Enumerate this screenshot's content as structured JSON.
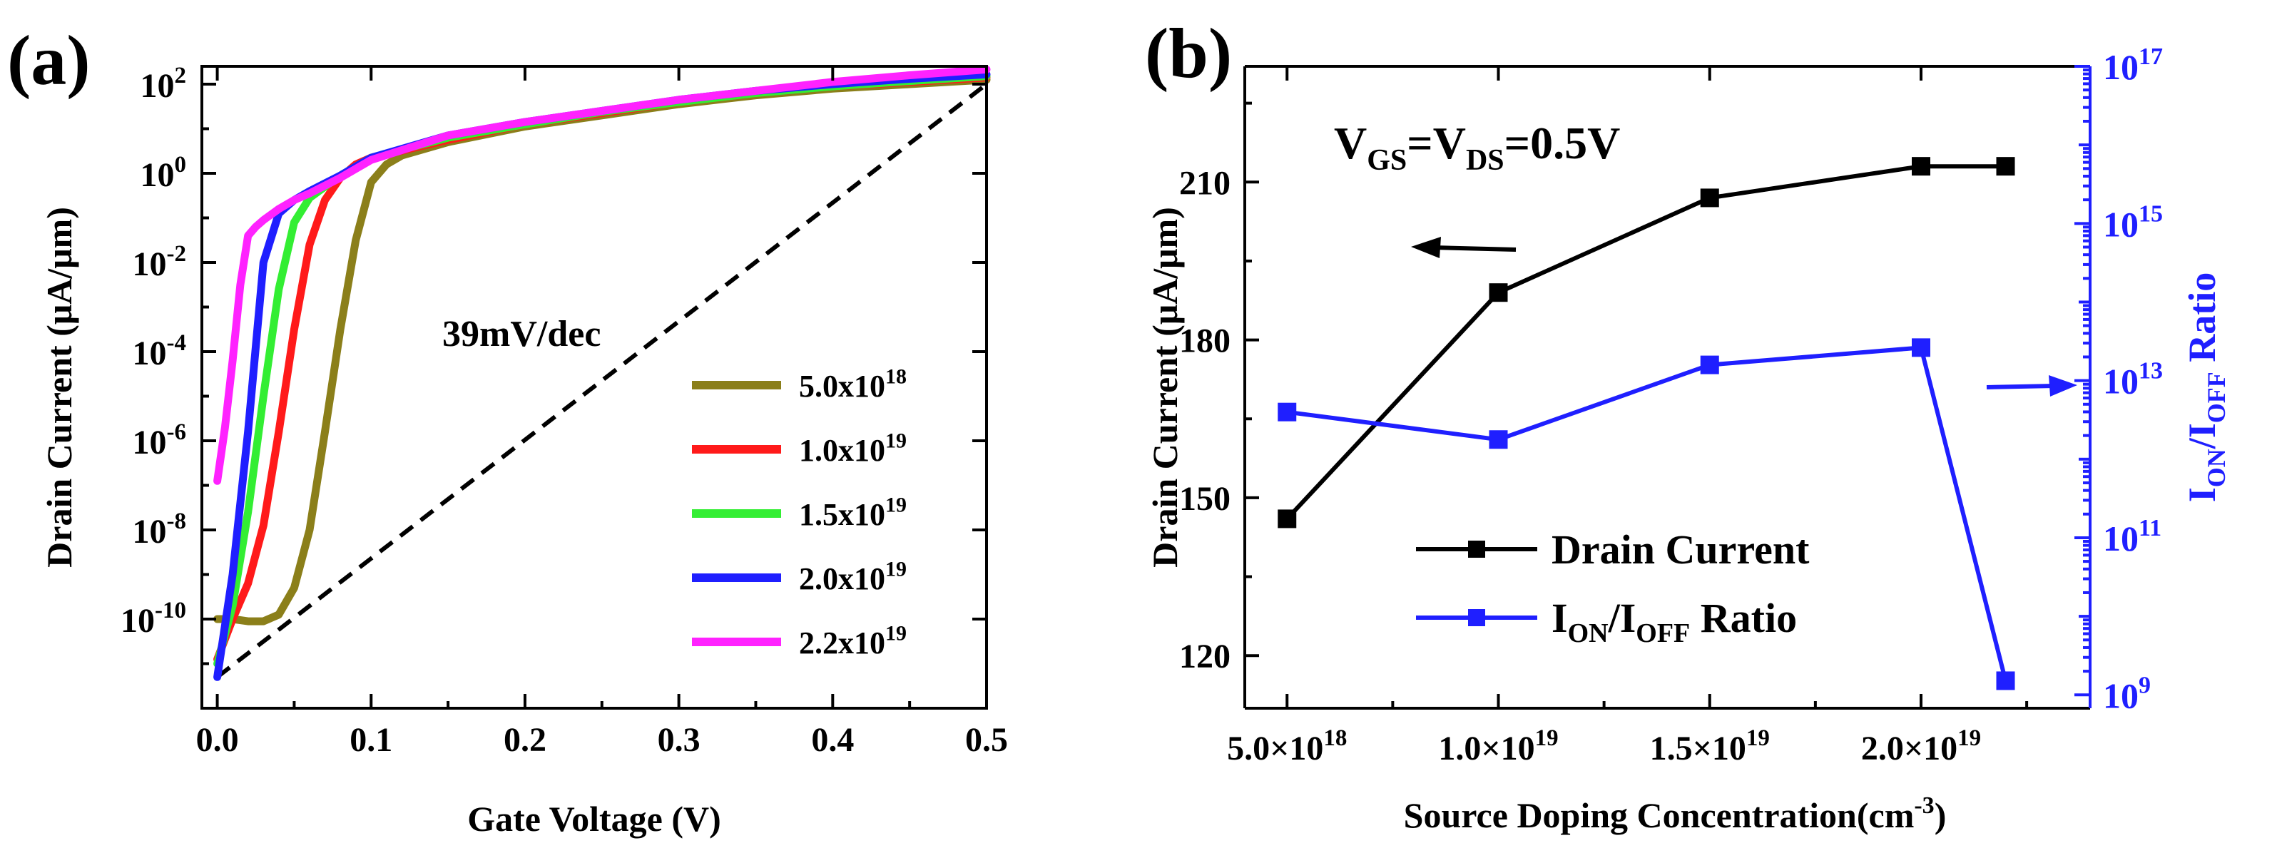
{
  "chart_data": [
    {
      "type": "line",
      "panel_label": "(a)",
      "xlabel": "Gate Voltage (V)",
      "ylabel": "Drain Current (μA/μm)",
      "xlim": [
        -0.01,
        0.5
      ],
      "ylim_log10": [
        -12,
        2.4
      ],
      "y_scale": "log",
      "x_ticks": [
        "0.0",
        "0.1",
        "0.2",
        "0.3",
        "0.4",
        "0.5"
      ],
      "x_tick_values": [
        0,
        0.1,
        0.2,
        0.3,
        0.4,
        0.5
      ],
      "y_ticks": [
        {
          "base": "10",
          "exp": "2",
          "value": 2
        },
        {
          "base": "10",
          "exp": "0",
          "value": 0
        },
        {
          "base": "10",
          "exp": "-2",
          "value": -2
        },
        {
          "base": "10",
          "exp": "-4",
          "value": -4
        },
        {
          "base": "10",
          "exp": "-6",
          "value": -6
        },
        {
          "base": "10",
          "exp": "-8",
          "value": -8
        },
        {
          "base": "10",
          "exp": "-10",
          "value": -10
        }
      ],
      "annotation": "39mV/dec",
      "reference_line": {
        "style": "dashed",
        "color": "#000000",
        "x": [
          0.0,
          0.5
        ],
        "log10_y": [
          -11.3,
          2.0
        ]
      },
      "legend": {
        "placement": "center-right"
      },
      "series": [
        {
          "base": "5.0x10",
          "exp": "18",
          "color": "#8b7f1a",
          "x": [
            0.0,
            0.01,
            0.02,
            0.03,
            0.04,
            0.05,
            0.06,
            0.07,
            0.08,
            0.09,
            0.1,
            0.11,
            0.12,
            0.15,
            0.2,
            0.25,
            0.3,
            0.35,
            0.4,
            0.45,
            0.5
          ],
          "log10_y": [
            -10.0,
            -10.0,
            -10.05,
            -10.05,
            -9.9,
            -9.3,
            -8.0,
            -5.8,
            -3.5,
            -1.5,
            -0.2,
            0.2,
            0.4,
            0.7,
            1.05,
            1.3,
            1.55,
            1.75,
            1.9,
            2.0,
            2.1
          ]
        },
        {
          "base": "1.0x10",
          "exp": "19",
          "color": "#ff1a1a",
          "x": [
            0.0,
            0.01,
            0.02,
            0.03,
            0.04,
            0.05,
            0.06,
            0.07,
            0.08,
            0.09,
            0.1,
            0.15,
            0.2,
            0.25,
            0.3,
            0.35,
            0.4,
            0.45,
            0.5
          ],
          "log10_y": [
            -10.9,
            -10.0,
            -9.2,
            -7.9,
            -5.8,
            -3.5,
            -1.6,
            -0.6,
            -0.1,
            0.2,
            0.35,
            0.75,
            1.1,
            1.35,
            1.6,
            1.8,
            1.95,
            2.05,
            2.15
          ]
        },
        {
          "base": "1.5x10",
          "exp": "19",
          "color": "#33ee33",
          "x": [
            0.0,
            0.01,
            0.02,
            0.03,
            0.04,
            0.05,
            0.06,
            0.07,
            0.08,
            0.1,
            0.15,
            0.2,
            0.25,
            0.3,
            0.35,
            0.4,
            0.45,
            0.5
          ],
          "log10_y": [
            -11.0,
            -9.7,
            -7.6,
            -5.0,
            -2.6,
            -1.1,
            -0.55,
            -0.3,
            -0.05,
            0.35,
            0.8,
            1.1,
            1.38,
            1.6,
            1.8,
            1.95,
            2.07,
            2.18
          ]
        },
        {
          "base": "2.0x10",
          "exp": "19",
          "color": "#1f1fff",
          "x": [
            0.0,
            0.01,
            0.02,
            0.025,
            0.03,
            0.04,
            0.05,
            0.06,
            0.08,
            0.1,
            0.15,
            0.2,
            0.25,
            0.3,
            0.35,
            0.4,
            0.45,
            0.5
          ],
          "log10_y": [
            -11.3,
            -9.0,
            -5.8,
            -3.9,
            -2.0,
            -0.9,
            -0.6,
            -0.4,
            -0.05,
            0.35,
            0.85,
            1.15,
            1.4,
            1.65,
            1.85,
            2.0,
            2.12,
            2.22
          ]
        },
        {
          "base": "2.2x10",
          "exp": "19",
          "color": "#ff22ff",
          "x": [
            0.0,
            0.005,
            0.01,
            0.015,
            0.02,
            0.025,
            0.03,
            0.04,
            0.05,
            0.06,
            0.08,
            0.1,
            0.15,
            0.2,
            0.25,
            0.3,
            0.35,
            0.4,
            0.45,
            0.5
          ],
          "log10_y": [
            -6.9,
            -5.7,
            -4.2,
            -2.5,
            -1.4,
            -1.2,
            -1.05,
            -0.8,
            -0.6,
            -0.45,
            -0.1,
            0.3,
            0.85,
            1.15,
            1.4,
            1.65,
            1.85,
            2.05,
            2.2,
            2.33
          ]
        }
      ]
    },
    {
      "type": "line",
      "panel_label": "(b)",
      "xlabel_prefix": "Source Doping Concentration(cm",
      "xlabel_exp": "-3",
      "xlabel_suffix": ")",
      "ylabel": "Drain Current (μA/μm)",
      "ylabel_right_parts": [
        "I",
        "ON",
        "/I",
        "OFF",
        " Ratio"
      ],
      "annotation_parts": [
        "V",
        "GS",
        "=V",
        "DS",
        "=0.5V"
      ],
      "xlim": [
        4e+18,
        2.4e+19
      ],
      "ylim_left": [
        110,
        232
      ],
      "ylim_right_log10": [
        8.83,
        17.0
      ],
      "x_ticks": [
        {
          "base": "5.0×10",
          "exp": "18",
          "value": 5e+18
        },
        {
          "base": "1.0×10",
          "exp": "19",
          "value": 1e+19
        },
        {
          "base": "1.5×10",
          "exp": "19",
          "value": 1.5e+19
        },
        {
          "base": "2.0×10",
          "exp": "19",
          "value": 2e+19
        }
      ],
      "y_ticks_left": [
        "120",
        "150",
        "180",
        "210"
      ],
      "y_tick_values_left": [
        120,
        150,
        180,
        210
      ],
      "y_ticks_right": [
        {
          "base": "10",
          "exp": "9",
          "value": 9
        },
        {
          "base": "10",
          "exp": "11",
          "value": 11
        },
        {
          "base": "10",
          "exp": "13",
          "value": 13
        },
        {
          "base": "10",
          "exp": "15",
          "value": 15
        },
        {
          "base": "10",
          "exp": "17",
          "value": 17
        }
      ],
      "axis_right_color": "#1f1fff",
      "legend": {
        "placement": "bottom-center"
      },
      "series": [
        {
          "name": "Drain Current",
          "axis": "left",
          "color": "#000000",
          "x": [
            5e+18,
            1e+19,
            1.5e+19,
            2e+19,
            2.2e+19
          ],
          "values": [
            146,
            189,
            207,
            213,
            213
          ]
        },
        {
          "name_parts": [
            "I",
            "ON",
            "/I",
            "OFF",
            " Ratio"
          ],
          "axis": "right",
          "color": "#1f1fff",
          "x": [
            5e+18,
            1e+19,
            1.5e+19,
            2e+19,
            2.2e+19
          ],
          "log10_values": [
            12.6,
            12.25,
            13.2,
            13.42,
            9.18
          ]
        }
      ]
    }
  ]
}
